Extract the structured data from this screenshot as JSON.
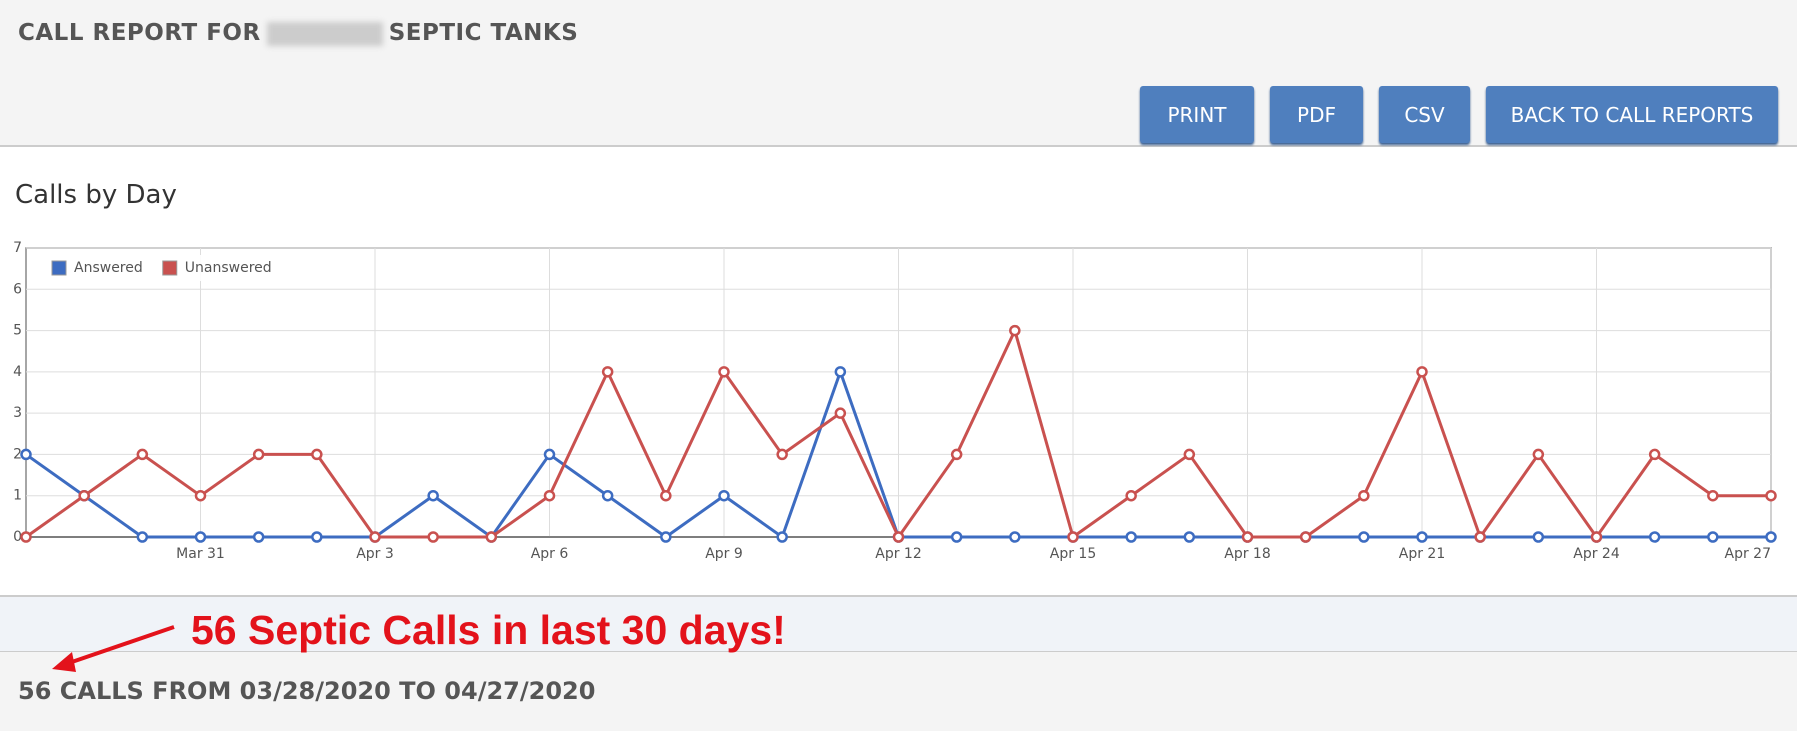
{
  "header": {
    "title_prefix": "CALL REPORT FOR",
    "title_suffix": "SEPTIC TANKS",
    "buttons": [
      "PRINT",
      "PDF",
      "CSV",
      "BACK TO CALL REPORTS"
    ]
  },
  "section_title": "Calls by Day",
  "chart_data": {
    "type": "line",
    "categories": [
      null,
      null,
      null,
      "Mar 31",
      null,
      null,
      "Apr 3",
      null,
      null,
      "Apr 6",
      null,
      null,
      "Apr 9",
      null,
      null,
      "Apr 12",
      null,
      null,
      "Apr 15",
      null,
      null,
      "Apr 18",
      null,
      null,
      "Apr 21",
      null,
      null,
      "Apr 24",
      null,
      null,
      "Apr 27"
    ],
    "series": [
      {
        "name": "Answered",
        "color": "#3d6cc1",
        "values": [
          2,
          1,
          0,
          0,
          0,
          0,
          0,
          1,
          0,
          2,
          1,
          0,
          1,
          0,
          4,
          0,
          0,
          0,
          0,
          0,
          0,
          0,
          0,
          0,
          0,
          0,
          0,
          0,
          0,
          0,
          0
        ]
      },
      {
        "name": "Unanswered",
        "color": "#c9514f",
        "values": [
          0,
          1,
          2,
          1,
          2,
          2,
          0,
          0,
          0,
          1,
          4,
          1,
          4,
          2,
          3,
          0,
          2,
          5,
          0,
          1,
          2,
          0,
          0,
          1,
          4,
          0,
          2,
          0,
          2,
          1,
          1
        ]
      }
    ],
    "ylim": [
      0,
      7
    ],
    "yticks": [
      0,
      1,
      2,
      3,
      4,
      5,
      6,
      7
    ],
    "grid": true,
    "legend": "upper left"
  },
  "annotation": "56 Septic Calls in last 30 days!",
  "footer": "56 CALLS FROM 03/28/2020 TO 04/27/2020"
}
